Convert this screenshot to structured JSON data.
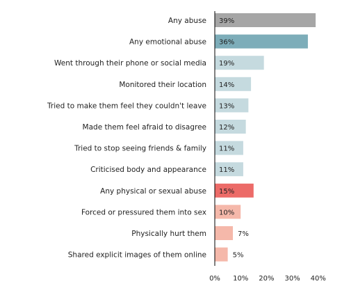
{
  "chart_data": {
    "type": "bar",
    "orientation": "horizontal",
    "title": "",
    "xlabel": "",
    "ylabel": "",
    "xlim": [
      0,
      40
    ],
    "grid": false,
    "categories": [
      "Any abuse",
      "Any emotional abuse",
      "Went through their phone or social media",
      "Monitored their location",
      "Tried to make them feel they couldn't leave",
      "Made them feel afraid to disagree",
      "Tried to stop seeing friends & family",
      "Criticised body and appearance",
      "Any physical or sexual abuse",
      "Forced or pressured them into sex",
      "Physically hurt them",
      "Shared explicit images of them online"
    ],
    "values": [
      39,
      36,
      19,
      14,
      13,
      12,
      11,
      11,
      15,
      10,
      7,
      5
    ],
    "value_labels": [
      "39%",
      "36%",
      "19%",
      "14%",
      "13%",
      "12%",
      "11%",
      "11%",
      "15%",
      "10%",
      "7%",
      "5%"
    ],
    "bar_colors": [
      "#a6a6a6",
      "#7dadb9",
      "#c5dadf",
      "#c5dadf",
      "#c5dadf",
      "#c5dadf",
      "#c5dadf",
      "#c5dadf",
      "#ec6b68",
      "#f5b8aa",
      "#f5b8aa",
      "#f5b8aa"
    ],
    "x_ticks": [
      0,
      10,
      20,
      30,
      40
    ],
    "x_tick_labels": [
      "0%",
      "10%",
      "20%",
      "30%",
      "40%"
    ],
    "axis_color": "#000000"
  }
}
